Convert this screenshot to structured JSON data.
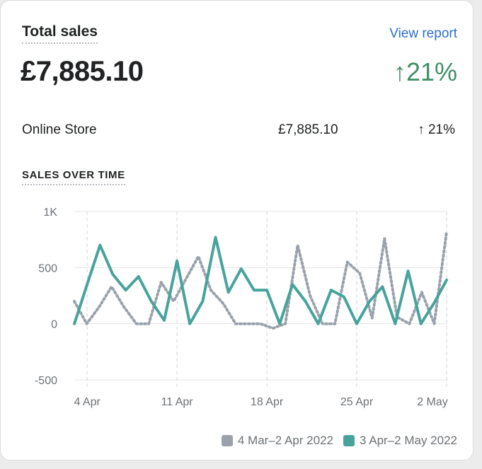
{
  "card": {
    "title": "Total sales",
    "view_report": "View report",
    "total": "£7,885.10",
    "change": "↑21%",
    "breakdown": {
      "label": "Online Store",
      "amount": "£7,885.10",
      "change": "↑ 21%"
    },
    "subtitle": "SALES OVER TIME"
  },
  "colors": {
    "current": "#47a39c",
    "previous": "#9aa1ab",
    "positive": "#3f8f66",
    "link": "#2c6ecb"
  },
  "chart_data": {
    "type": "line",
    "x_tick_labels": [
      "4 Apr",
      "11 Apr",
      "18 Apr",
      "25 Apr",
      "2 May"
    ],
    "y_tick_labels": [
      "1K",
      "500",
      "0",
      "-500"
    ],
    "ylim": [
      -500,
      1000
    ],
    "grid": true,
    "legend_position": "bottom-right",
    "series": [
      {
        "name": "4 Mar–2 Apr 2022",
        "style": "dotted",
        "values": [
          200,
          0,
          150,
          330,
          150,
          0,
          0,
          370,
          200,
          400,
          600,
          300,
          180,
          0,
          0,
          0,
          -40,
          0,
          700,
          250,
          0,
          0,
          550,
          450,
          50,
          760,
          60,
          0,
          280,
          0,
          820
        ]
      },
      {
        "name": "3 Apr–2 May 2022",
        "style": "solid",
        "values": [
          0,
          350,
          700,
          440,
          300,
          420,
          200,
          30,
          560,
          0,
          200,
          770,
          280,
          490,
          300,
          300,
          0,
          350,
          200,
          0,
          300,
          240,
          0,
          200,
          330,
          0,
          470,
          0,
          180,
          390
        ]
      }
    ]
  }
}
